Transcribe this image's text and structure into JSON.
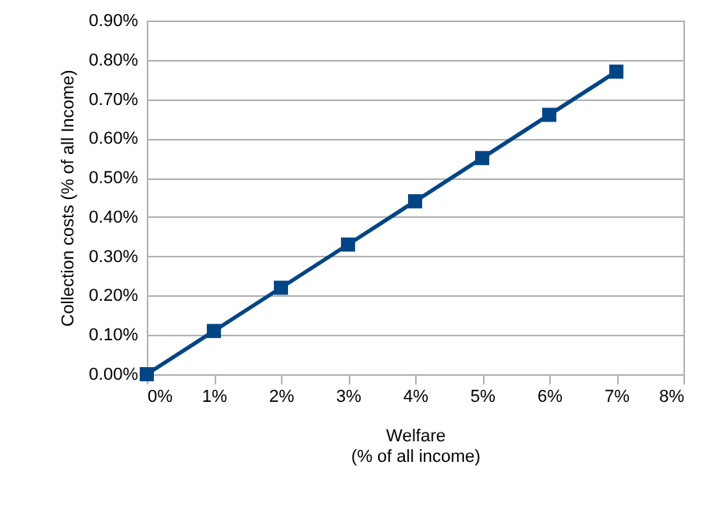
{
  "chart_data": {
    "type": "line",
    "xlabel": "Welfare\n(% of all income)",
    "ylabel": "Collection costs (% of all Income)",
    "x": [
      0,
      1,
      2,
      3,
      4,
      5,
      6,
      7
    ],
    "series": [
      {
        "color": "#004586",
        "values": [
          0,
          0.11,
          0.22,
          0.33,
          0.44,
          0.55,
          0.66,
          0.77
        ]
      }
    ],
    "xlim": [
      0,
      8
    ],
    "xticks": [
      {
        "value": 0,
        "label": "0%"
      },
      {
        "value": 1,
        "label": "1%"
      },
      {
        "value": 2,
        "label": "2%"
      },
      {
        "value": 3,
        "label": "3%"
      },
      {
        "value": 4,
        "label": "4%"
      },
      {
        "value": 5,
        "label": "5%"
      },
      {
        "value": 6,
        "label": "6%"
      },
      {
        "value": 7,
        "label": "7%"
      },
      {
        "value": 8,
        "label": "8%"
      }
    ],
    "ylim": [
      0,
      0.9
    ],
    "yticks": [
      {
        "value": 0,
        "label": "0.00%"
      },
      {
        "value": 0.1,
        "label": "0.10%"
      },
      {
        "value": 0.2,
        "label": "0.20%"
      },
      {
        "value": 0.3,
        "label": "0.30%"
      },
      {
        "value": 0.4,
        "label": "0.40%"
      },
      {
        "value": 0.5,
        "label": "0.50%"
      },
      {
        "value": 0.6,
        "label": "0.60%"
      },
      {
        "value": 0.7,
        "label": "0.70%"
      },
      {
        "value": 0.8,
        "label": "0.80%"
      },
      {
        "value": 0.9,
        "label": "0.90%"
      }
    ],
    "grid": "y",
    "marker": "square",
    "line_style": "solid"
  }
}
